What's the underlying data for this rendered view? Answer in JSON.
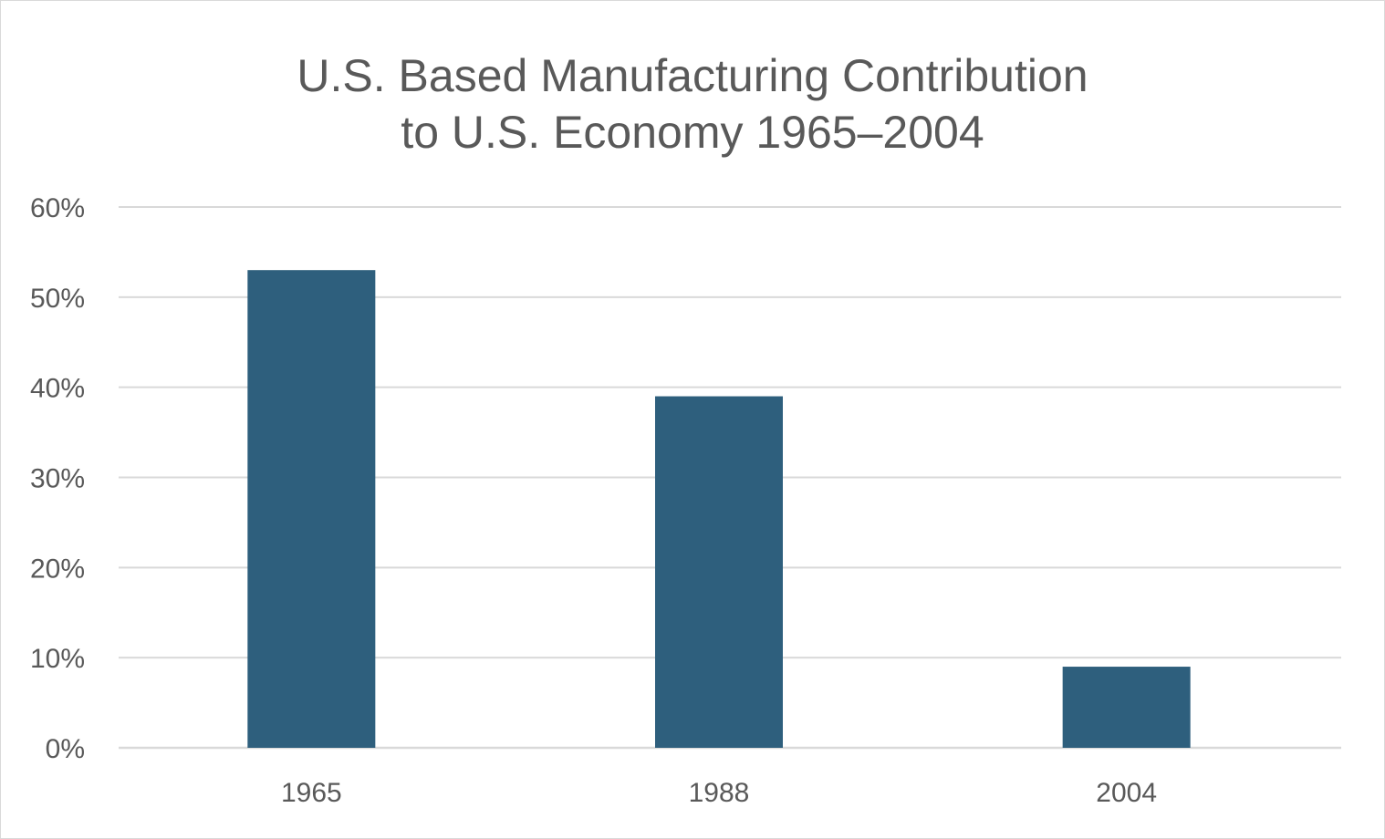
{
  "chart_data": {
    "type": "bar",
    "title_lines": [
      "U.S. Based Manufacturing Contribution",
      "to U.S. Economy 1965–2004"
    ],
    "categories": [
      "1965",
      "1988",
      "2004"
    ],
    "values": [
      0.53,
      0.39,
      0.09
    ],
    "ylim": [
      0,
      0.6
    ],
    "yticks": [
      0,
      0.1,
      0.2,
      0.3,
      0.4,
      0.5,
      0.6
    ],
    "ytick_labels": [
      "0%",
      "10%",
      "20%",
      "30%",
      "40%",
      "50%",
      "60%"
    ],
    "grid": true,
    "legend": "none",
    "bar_color": "#2e5f7d",
    "gridline_color": "#d9d9d9",
    "text_color": "#595959"
  }
}
